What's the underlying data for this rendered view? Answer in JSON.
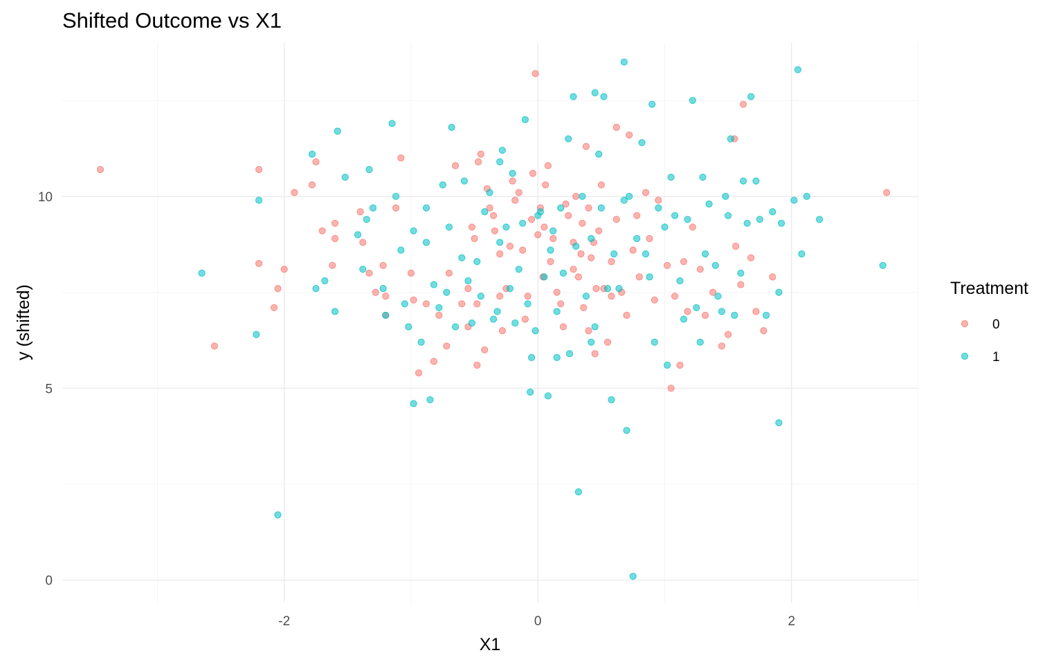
{
  "chart_data": {
    "type": "scatter",
    "title": "Shifted Outcome vs X1",
    "xlabel": "X1",
    "ylabel": "y (shifted)",
    "xlim": [
      -3.75,
      3.0
    ],
    "ylim": [
      -0.6,
      14.0
    ],
    "x_ticks": [
      -2,
      0,
      2
    ],
    "y_ticks": [
      0,
      5,
      10
    ],
    "grid": true,
    "legend": {
      "title": "Treatment",
      "position": "right"
    },
    "series": [
      {
        "name": "0",
        "color": "#F8766D",
        "points": [
          [
            -3.45,
            10.7
          ],
          [
            -2.55,
            6.1
          ],
          [
            -2.2,
            10.7
          ],
          [
            -2.2,
            8.25
          ],
          [
            -2.05,
            7.6
          ],
          [
            -2.08,
            7.1
          ],
          [
            -2.0,
            8.1
          ],
          [
            -1.92,
            10.1
          ],
          [
            -1.78,
            10.3
          ],
          [
            -1.75,
            10.9
          ],
          [
            -1.7,
            9.1
          ],
          [
            -1.6,
            9.3
          ],
          [
            -1.6,
            8.9
          ],
          [
            -1.62,
            8.2
          ],
          [
            -1.4,
            9.6
          ],
          [
            -1.38,
            8.8
          ],
          [
            -1.33,
            8.0
          ],
          [
            -1.28,
            7.5
          ],
          [
            -1.22,
            8.2
          ],
          [
            -1.2,
            6.9
          ],
          [
            -1.2,
            7.4
          ],
          [
            -1.12,
            9.7
          ],
          [
            -1.08,
            11.0
          ],
          [
            -1.0,
            8.0
          ],
          [
            -0.98,
            7.3
          ],
          [
            -0.94,
            5.4
          ],
          [
            -0.88,
            7.2
          ],
          [
            -0.82,
            5.7
          ],
          [
            -0.78,
            6.9
          ],
          [
            -0.72,
            6.1
          ],
          [
            -0.7,
            8.0
          ],
          [
            -0.65,
            10.8
          ],
          [
            -0.6,
            7.2
          ],
          [
            -0.55,
            7.6
          ],
          [
            -0.52,
            9.2
          ],
          [
            -0.48,
            7.2
          ],
          [
            -0.47,
            10.9
          ],
          [
            -0.42,
            6.0
          ],
          [
            -0.38,
            9.7
          ],
          [
            -0.34,
            9.1
          ],
          [
            -0.3,
            7.4
          ],
          [
            -0.28,
            6.5
          ],
          [
            -0.22,
            8.7
          ],
          [
            -0.15,
            10.1
          ],
          [
            -0.1,
            6.8
          ],
          [
            -0.05,
            9.4
          ],
          [
            0.02,
            9.7
          ],
          [
            -0.02,
            13.2
          ],
          [
            0.05,
            9.2
          ],
          [
            0.08,
            10.8
          ],
          [
            0.1,
            8.3
          ],
          [
            0.15,
            7.5
          ],
          [
            0.2,
            6.6
          ],
          [
            0.22,
            9.8
          ],
          [
            0.28,
            8.8
          ],
          [
            0.32,
            7.9
          ],
          [
            0.35,
            9.3
          ],
          [
            0.38,
            11.3
          ],
          [
            0.4,
            6.5
          ],
          [
            0.42,
            8.4
          ],
          [
            0.45,
            5.9
          ],
          [
            0.48,
            9.1
          ],
          [
            0.5,
            10.3
          ],
          [
            0.52,
            7.6
          ],
          [
            -0.55,
            6.6
          ],
          [
            -0.5,
            8.9
          ],
          [
            -0.45,
            11.1
          ],
          [
            -0.4,
            10.2
          ],
          [
            -0.35,
            9.5
          ],
          [
            -0.3,
            8.5
          ],
          [
            -0.25,
            7.6
          ],
          [
            -0.2,
            10.4
          ],
          [
            -0.18,
            9.9
          ],
          [
            -0.12,
            8.6
          ],
          [
            -0.08,
            7.4
          ],
          [
            -0.04,
            10.6
          ],
          [
            0.0,
            9.0
          ],
          [
            0.04,
            7.9
          ],
          [
            0.06,
            10.3
          ],
          [
            0.12,
            8.9
          ],
          [
            0.18,
            7.2
          ],
          [
            0.24,
            9.5
          ],
          [
            0.3,
            10.0
          ],
          [
            0.34,
            8.5
          ],
          [
            0.36,
            7.1
          ],
          [
            0.4,
            9.7
          ],
          [
            0.44,
            8.8
          ],
          [
            0.46,
            7.6
          ],
          [
            0.55,
            6.2
          ],
          [
            0.58,
            8.3
          ],
          [
            0.62,
            9.4
          ],
          [
            0.66,
            7.5
          ],
          [
            0.7,
            6.9
          ],
          [
            0.72,
            11.6
          ],
          [
            0.75,
            8.6
          ],
          [
            0.78,
            9.5
          ],
          [
            0.8,
            7.9
          ],
          [
            0.85,
            10.1
          ],
          [
            0.88,
            8.9
          ],
          [
            0.92,
            7.3
          ],
          [
            0.95,
            9.9
          ],
          [
            1.02,
            8.2
          ],
          [
            1.05,
            5.0
          ],
          [
            1.08,
            7.4
          ],
          [
            1.12,
            5.6
          ],
          [
            1.15,
            8.3
          ],
          [
            1.18,
            7.0
          ],
          [
            1.22,
            9.2
          ],
          [
            1.28,
            8.1
          ],
          [
            1.32,
            6.9
          ],
          [
            1.38,
            7.5
          ],
          [
            1.45,
            6.1
          ],
          [
            1.5,
            6.4
          ],
          [
            1.56,
            8.7
          ],
          [
            1.6,
            7.7
          ],
          [
            1.62,
            12.4
          ],
          [
            1.68,
            8.4
          ],
          [
            1.72,
            7.0
          ],
          [
            1.78,
            6.5
          ],
          [
            1.85,
            7.9
          ],
          [
            2.75,
            10.1
          ],
          [
            1.55,
            11.5
          ],
          [
            -0.48,
            5.6
          ],
          [
            0.62,
            11.8
          ],
          [
            0.28,
            8.1
          ],
          [
            0.58,
            7.4
          ]
        ]
      },
      {
        "name": "1",
        "color": "#00BFC4",
        "points": [
          [
            -2.65,
            8.0
          ],
          [
            -2.22,
            6.4
          ],
          [
            -2.2,
            9.9
          ],
          [
            -2.05,
            1.7
          ],
          [
            -1.78,
            11.1
          ],
          [
            -1.75,
            7.6
          ],
          [
            -1.68,
            7.8
          ],
          [
            -1.6,
            7.0
          ],
          [
            -1.58,
            11.7
          ],
          [
            -1.52,
            10.5
          ],
          [
            -1.42,
            9.0
          ],
          [
            -1.38,
            8.1
          ],
          [
            -1.35,
            9.4
          ],
          [
            -1.33,
            10.7
          ],
          [
            -1.3,
            9.7
          ],
          [
            -1.22,
            7.6
          ],
          [
            -1.2,
            6.9
          ],
          [
            -1.15,
            11.9
          ],
          [
            -1.12,
            10.0
          ],
          [
            -1.08,
            8.6
          ],
          [
            -1.05,
            7.2
          ],
          [
            -1.02,
            6.6
          ],
          [
            -0.98,
            9.1
          ],
          [
            -0.98,
            4.6
          ],
          [
            -0.92,
            6.2
          ],
          [
            -0.88,
            9.7
          ],
          [
            -0.85,
            4.7
          ],
          [
            -0.82,
            7.7
          ],
          [
            -0.78,
            7.1
          ],
          [
            -0.75,
            10.3
          ],
          [
            -0.72,
            7.5
          ],
          [
            -0.7,
            9.2
          ],
          [
            -0.68,
            11.8
          ],
          [
            -0.65,
            6.6
          ],
          [
            -0.6,
            8.4
          ],
          [
            -0.58,
            10.4
          ],
          [
            -0.55,
            7.8
          ],
          [
            -0.52,
            6.7
          ],
          [
            -0.48,
            8.3
          ],
          [
            -0.45,
            7.4
          ],
          [
            -0.42,
            9.6
          ],
          [
            -0.38,
            10.1
          ],
          [
            -0.35,
            6.8
          ],
          [
            -0.32,
            7.0
          ],
          [
            -0.3,
            8.8
          ],
          [
            -0.28,
            11.2
          ],
          [
            -0.25,
            9.2
          ],
          [
            -0.22,
            7.6
          ],
          [
            -0.2,
            10.6
          ],
          [
            -0.18,
            6.7
          ],
          [
            -0.15,
            8.1
          ],
          [
            -0.12,
            9.3
          ],
          [
            -0.1,
            12.0
          ],
          [
            -0.08,
            7.2
          ],
          [
            -0.06,
            4.9
          ],
          [
            -0.02,
            6.5
          ],
          [
            0.02,
            9.6
          ],
          [
            0.05,
            7.9
          ],
          [
            0.08,
            4.8
          ],
          [
            0.1,
            8.6
          ],
          [
            0.12,
            9.1
          ],
          [
            0.15,
            7.0
          ],
          [
            0.18,
            9.7
          ],
          [
            0.2,
            8.0
          ],
          [
            0.24,
            11.5
          ],
          [
            0.28,
            12.6
          ],
          [
            0.3,
            8.7
          ],
          [
            0.32,
            2.3
          ],
          [
            0.35,
            10.0
          ],
          [
            0.38,
            7.4
          ],
          [
            0.42,
            8.9
          ],
          [
            0.45,
            6.6
          ],
          [
            0.48,
            11.1
          ],
          [
            0.5,
            9.7
          ],
          [
            0.55,
            7.6
          ],
          [
            0.58,
            4.7
          ],
          [
            0.6,
            8.5
          ],
          [
            0.64,
            7.6
          ],
          [
            0.68,
            13.5
          ],
          [
            0.7,
            3.9
          ],
          [
            0.72,
            10.0
          ],
          [
            0.75,
            0.1
          ],
          [
            0.78,
            8.9
          ],
          [
            0.82,
            11.4
          ],
          [
            0.85,
            8.5
          ],
          [
            0.88,
            7.9
          ],
          [
            0.9,
            12.4
          ],
          [
            0.92,
            6.2
          ],
          [
            0.95,
            9.7
          ],
          [
            1.0,
            9.2
          ],
          [
            1.02,
            5.6
          ],
          [
            1.05,
            10.5
          ],
          [
            1.08,
            9.5
          ],
          [
            1.12,
            7.8
          ],
          [
            1.15,
            6.8
          ],
          [
            1.18,
            9.4
          ],
          [
            1.22,
            12.5
          ],
          [
            1.25,
            7.1
          ],
          [
            1.28,
            6.2
          ],
          [
            1.3,
            10.5
          ],
          [
            1.32,
            8.5
          ],
          [
            1.35,
            9.8
          ],
          [
            1.4,
            8.2
          ],
          [
            1.42,
            7.4
          ],
          [
            1.45,
            7.0
          ],
          [
            1.48,
            10.0
          ],
          [
            1.5,
            9.5
          ],
          [
            1.55,
            6.9
          ],
          [
            1.6,
            8.0
          ],
          [
            1.62,
            10.4
          ],
          [
            1.65,
            9.3
          ],
          [
            1.68,
            12.6
          ],
          [
            1.72,
            10.4
          ],
          [
            1.75,
            9.4
          ],
          [
            1.8,
            6.9
          ],
          [
            1.85,
            9.6
          ],
          [
            1.9,
            4.1
          ],
          [
            1.92,
            9.3
          ],
          [
            2.02,
            9.9
          ],
          [
            2.05,
            13.3
          ],
          [
            2.08,
            8.5
          ],
          [
            2.12,
            10.0
          ],
          [
            2.22,
            9.4
          ],
          [
            2.72,
            8.2
          ],
          [
            1.9,
            7.5
          ],
          [
            1.52,
            11.5
          ],
          [
            0.25,
            5.9
          ],
          [
            -0.05,
            5.8
          ],
          [
            0.45,
            12.7
          ],
          [
            0.42,
            6.2
          ],
          [
            0.68,
            9.9
          ],
          [
            -0.3,
            10.9
          ],
          [
            0.0,
            9.5
          ],
          [
            0.52,
            12.6
          ],
          [
            0.15,
            5.8
          ],
          [
            -0.88,
            8.8
          ]
        ]
      }
    ]
  }
}
